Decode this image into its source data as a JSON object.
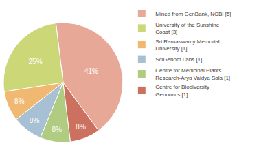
{
  "chart_data": {
    "type": "pie",
    "categories": [
      "Mined from GenBank, NCBI [5]",
      "University of the Sunshine\nCoast [3]",
      "Sri Ramaswamy Memorial\nUniversity [1]",
      "SciGenom Labs [1]",
      "Centre for Medicinal Plants\nResearch-Arya Vaidya Sala [1]",
      "Centre for Biodiversity\nGenomics [1]"
    ],
    "values": [
      41,
      25,
      8,
      8,
      8,
      8
    ],
    "value_labels": [
      "41%",
      "25%",
      "8%",
      "8%",
      "8%",
      "8%"
    ],
    "colors": [
      "#e8a898",
      "#ccd878",
      "#f0b870",
      "#a8c0d4",
      "#b0cc80",
      "#cc7060"
    ],
    "data_labels": true,
    "legend": "right"
  }
}
